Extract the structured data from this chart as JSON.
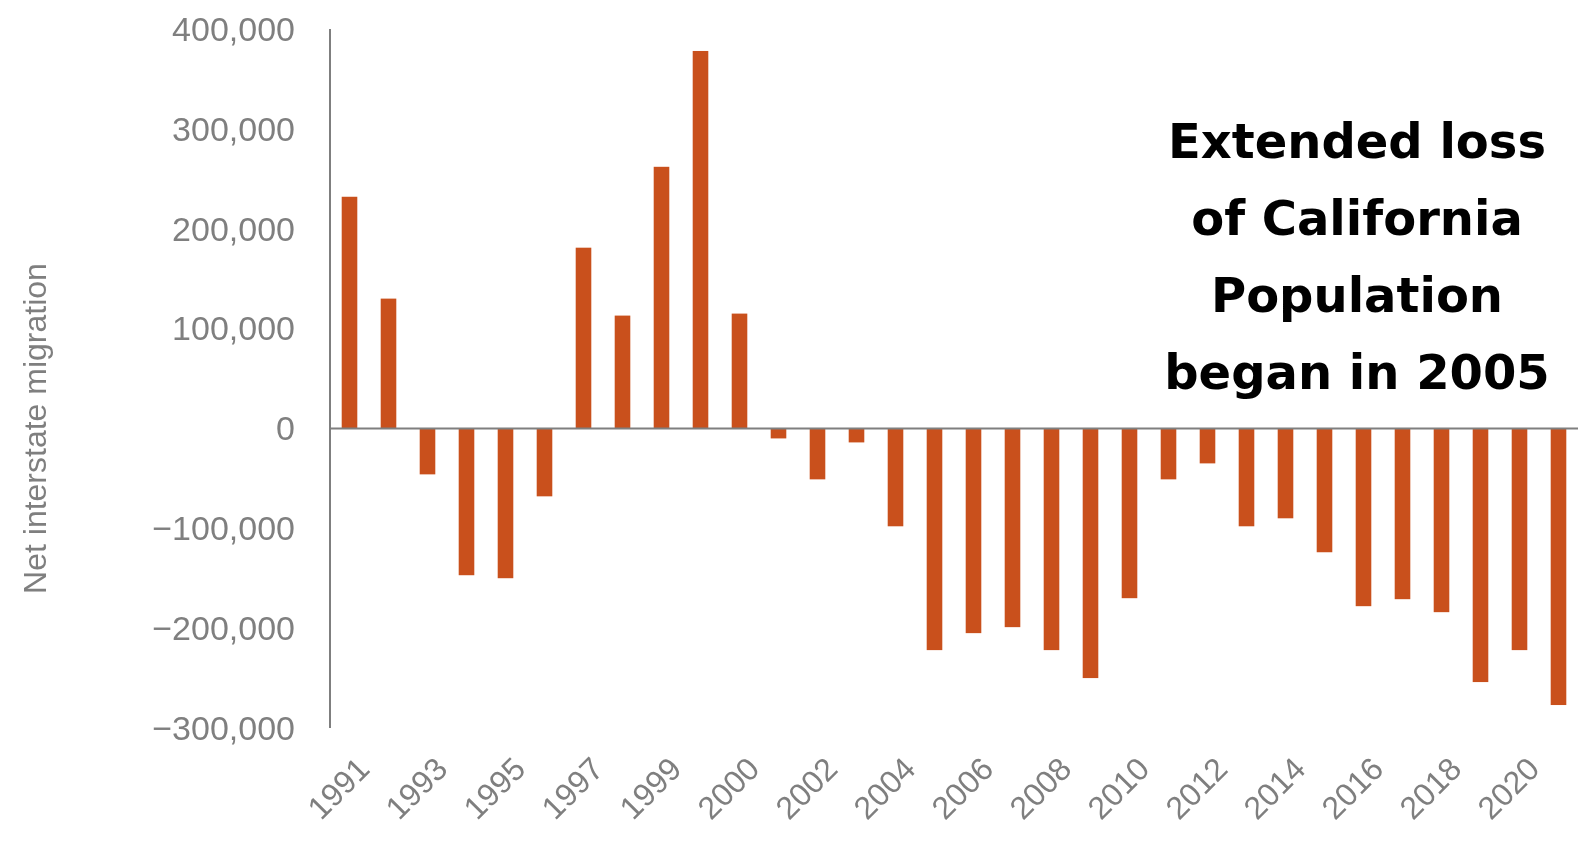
{
  "chart_data": {
    "type": "bar",
    "ylabel": "Net interstate migration",
    "categories": [
      "1991",
      null,
      "1993",
      null,
      "1995",
      null,
      "1997",
      null,
      "1999",
      null,
      "2000",
      null,
      "2002",
      null,
      "2004",
      null,
      "2006",
      null,
      "2008",
      null,
      "2010",
      null,
      "2012",
      null,
      "2014",
      null,
      "2016",
      null,
      "2018",
      null,
      "2020",
      null
    ],
    "values": [
      232000,
      130000,
      -46000,
      -147000,
      -150000,
      -68000,
      181000,
      113000,
      262000,
      378000,
      115000,
      -10000,
      -51000,
      -14000,
      -98000,
      -222000,
      -205000,
      -199000,
      -222000,
      -250000,
      -170000,
      -51000,
      -35000,
      -98000,
      -90000,
      -124000,
      -178000,
      -171000,
      -184000,
      -254000,
      -222000,
      -277000
    ],
    "color": "#c9501c",
    "ylim": [
      -300000,
      400000
    ],
    "yticks": [
      {
        "value": -300000,
        "label": "−300,000"
      },
      {
        "value": -200000,
        "label": "−200,000"
      },
      {
        "value": -100000,
        "label": "−100,000"
      },
      0,
      {
        "value": 100000,
        "label": "100,000"
      },
      {
        "value": 200000,
        "label": "200,000"
      },
      {
        "value": 300000,
        "label": "300,000"
      },
      {
        "value": 400000,
        "label": "400,000"
      }
    ],
    "annotations": [
      "Extended loss of California Population began in 2005"
    ]
  }
}
